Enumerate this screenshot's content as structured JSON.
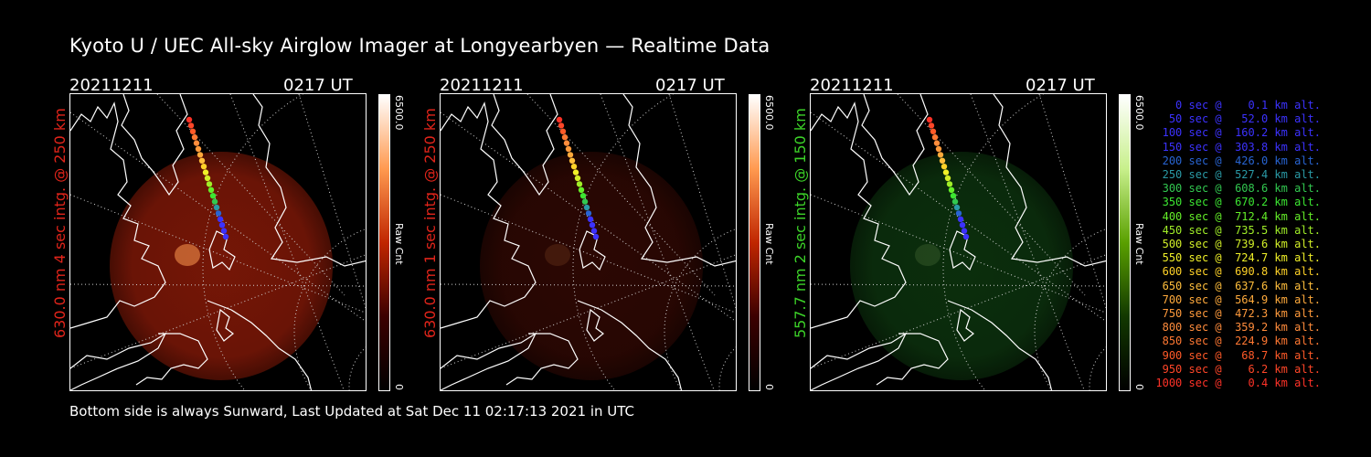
{
  "title": "Kyoto U / UEC All-sky Airglow Imager at Longyearbyen — Realtime Data",
  "panels": [
    {
      "date": "20211211",
      "time": "0217 UT",
      "side_label": "630.0 nm 4 sec intg. @ 250 km",
      "side_label_color": "#e0241a",
      "colorbar_max": "6500.0",
      "colorbar_min": "0",
      "colorbar_unit": "Raw Cnt",
      "colorbar_colors": [
        "#ffffff",
        "#ff9a50",
        "#c02600",
        "#3c0000",
        "#000000"
      ],
      "glow_color": "#8a1a08",
      "glow_opacity": 0.85
    },
    {
      "date": "20211211",
      "time": "0217 UT",
      "side_label": "630.0 nm 1 sec intg. @ 250 km",
      "side_label_color": "#e0241a",
      "colorbar_max": "6500.0",
      "colorbar_min": "0",
      "colorbar_unit": "Raw Cnt",
      "colorbar_colors": [
        "#ffffff",
        "#ff9a50",
        "#c02600",
        "#3c0000",
        "#000000"
      ],
      "glow_color": "#3a0a04",
      "glow_opacity": 0.75
    },
    {
      "date": "20211211",
      "time": "0217 UT",
      "side_label": "557.7 nm 2 sec intg. @ 150 km",
      "side_label_color": "#3cd228",
      "colorbar_max": "6500.0",
      "colorbar_min": "0",
      "colorbar_unit": "Raw Cnt",
      "colorbar_colors": [
        "#ffffff",
        "#c8f08c",
        "#5aa000",
        "#123800",
        "#000000"
      ],
      "glow_color": "#0e3a10",
      "glow_opacity": 0.8
    }
  ],
  "footer": "Bottom side is always Sunward, Last Updated at Sat Dec 11 02:17:13 2021 in UTC",
  "altitude_table": [
    {
      "text": "   0 sec @    0.1 km alt.",
      "color": "#3c32ff"
    },
    {
      "text": "  50 sec @   52.0 km alt.",
      "color": "#3c32ff"
    },
    {
      "text": " 100 sec @  160.2 km alt.",
      "color": "#3c32ff"
    },
    {
      "text": " 150 sec @  303.8 km alt.",
      "color": "#3c32ff"
    },
    {
      "text": " 200 sec @  426.0 km alt.",
      "color": "#2864d2"
    },
    {
      "text": " 250 sec @  527.4 km alt.",
      "color": "#2a9aa6"
    },
    {
      "text": " 300 sec @  608.6 km alt.",
      "color": "#32c850"
    },
    {
      "text": " 350 sec @  670.2 km alt.",
      "color": "#3ce632"
    },
    {
      "text": " 400 sec @  712.4 km alt.",
      "color": "#64ee28"
    },
    {
      "text": " 450 sec @  735.5 km alt.",
      "color": "#a0ee28"
    },
    {
      "text": " 500 sec @  739.6 km alt.",
      "color": "#d2ee28"
    },
    {
      "text": " 550 sec @  724.7 km alt.",
      "color": "#f0f028"
    },
    {
      "text": " 600 sec @  690.8 km alt.",
      "color": "#ffd228"
    },
    {
      "text": " 650 sec @  637.6 km alt.",
      "color": "#ffbe3c"
    },
    {
      "text": " 700 sec @  564.9 km alt.",
      "color": "#ffaa3c"
    },
    {
      "text": " 750 sec @  472.3 km alt.",
      "color": "#ff9a3c"
    },
    {
      "text": " 800 sec @  359.2 km alt.",
      "color": "#ff8c3c"
    },
    {
      "text": " 850 sec @  224.9 km alt.",
      "color": "#ff7832"
    },
    {
      "text": " 900 sec @   68.7 km alt.",
      "color": "#ff5a28"
    },
    {
      "text": " 950 sec @    6.2 km alt.",
      "color": "#ff4628"
    },
    {
      "text": "1000 sec @    0.4 km alt.",
      "color": "#ff3228"
    }
  ]
}
